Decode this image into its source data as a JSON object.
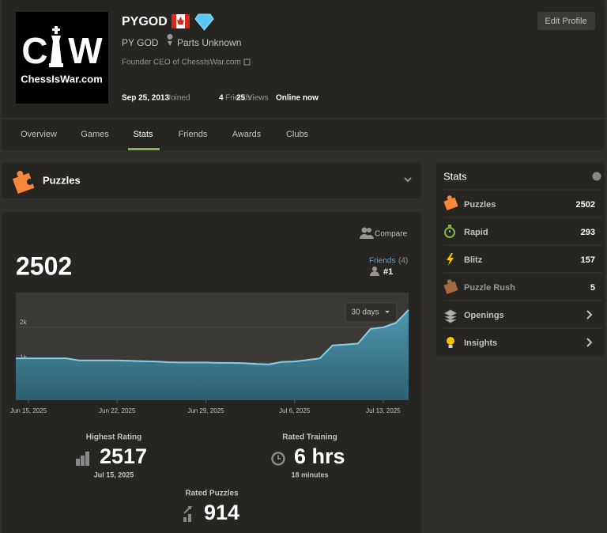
{
  "profile": {
    "avatar": {
      "logo_left": "C",
      "logo_right": "W",
      "caption": "ChessIsWar.com"
    },
    "username": "PYGOD",
    "name": "PY GOD",
    "location": "Parts Unknown",
    "bio": "Founder CEO of ChessIsWar.com",
    "joined": "Sep 25, 2013",
    "joined_label": "Joined",
    "friends": "4",
    "friends_label": "Friends",
    "views": "25",
    "views_label": "Views",
    "status": "Online now",
    "edit_button": "Edit Profile"
  },
  "tabs": {
    "items": [
      "Overview",
      "Games",
      "Stats",
      "Friends",
      "Awards",
      "Clubs"
    ],
    "active": 2
  },
  "section": {
    "title": "Puzzles"
  },
  "rating": {
    "compare": "Compare",
    "current": "2502",
    "friends_label": "Friends",
    "friends_count": "(4)",
    "rank": "#1",
    "period": "30 days"
  },
  "chart_data": {
    "type": "area",
    "color": "#86cfe8",
    "grid": true,
    "x": [
      "Jun 14, 2025",
      "Jun 15, 2025",
      "Jun 16, 2025",
      "Jun 17, 2025",
      "Jun 18, 2025",
      "Jun 19, 2025",
      "Jun 20, 2025",
      "Jun 21, 2025",
      "Jun 22, 2025",
      "Jun 23, 2025",
      "Jun 24, 2025",
      "Jun 25, 2025",
      "Jun 26, 2025",
      "Jun 27, 2025",
      "Jun 28, 2025",
      "Jun 29, 2025",
      "Jun 30, 2025",
      "Jul 1, 2025",
      "Jul 2, 2025",
      "Jul 3, 2025",
      "Jul 4, 2025",
      "Jul 5, 2025",
      "Jul 6, 2025",
      "Jul 7, 2025",
      "Jul 8, 2025",
      "Jul 9, 2025",
      "Jul 10, 2025",
      "Jul 11, 2025",
      "Jul 12, 2025",
      "Jul 13, 2025",
      "Jul 14, 2025",
      "Jul 15, 2025"
    ],
    "values": [
      1120,
      1120,
      1120,
      1120,
      1120,
      1060,
      1060,
      1060,
      1060,
      1050,
      1040,
      1030,
      1010,
      1000,
      1000,
      1000,
      990,
      990,
      980,
      960,
      950,
      1020,
      1030,
      1070,
      1120,
      1490,
      1510,
      1540,
      1960,
      2000,
      2130,
      2500
    ],
    "xlim": [
      "Jun 14, 2025",
      "Jul 15, 2025"
    ],
    "xticks": [
      "Jun 15, 2025",
      "Jun 22, 2025",
      "Jun 29, 2025",
      "Jul 6, 2025",
      "Jul 13, 2025"
    ],
    "ylim": [
      -70,
      2990
    ],
    "yticks": [
      0,
      {
        "value": 1000,
        "label": "1k"
      },
      {
        "value": 2000,
        "label": "2k"
      }
    ]
  },
  "summary": {
    "highest_label": "Highest Rating",
    "highest": "2517",
    "highest_date": "Jul 15, 2025",
    "training_label": "Rated Training",
    "training": "6 hrs",
    "training_detail": "18 minutes",
    "puzzles_label": "Rated Puzzles",
    "puzzles": "914"
  },
  "sidebar": {
    "title": "Stats",
    "items": [
      {
        "label": "Puzzles",
        "value": "2502"
      },
      {
        "label": "Rapid",
        "value": "293"
      },
      {
        "label": "Blitz",
        "value": "157"
      },
      {
        "label": "Puzzle Rush",
        "value": "5"
      },
      {
        "label": "Openings"
      },
      {
        "label": "Insights"
      }
    ]
  }
}
